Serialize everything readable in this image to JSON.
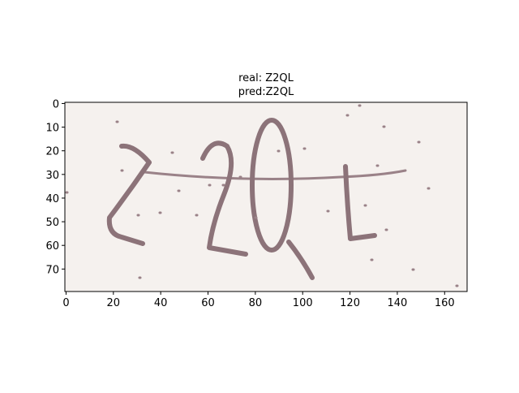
{
  "chart_data": {
    "type": "image",
    "title": [
      "real: Z2QL",
      "pred:Z2QL"
    ],
    "xlim": [
      -0.5,
      169.5
    ],
    "ylim": [
      79.5,
      -0.5
    ],
    "xticks": [
      0,
      20,
      40,
      60,
      80,
      100,
      120,
      140,
      160
    ],
    "yticks": [
      0,
      10,
      20,
      30,
      40,
      50,
      60,
      70
    ]
  }
}
